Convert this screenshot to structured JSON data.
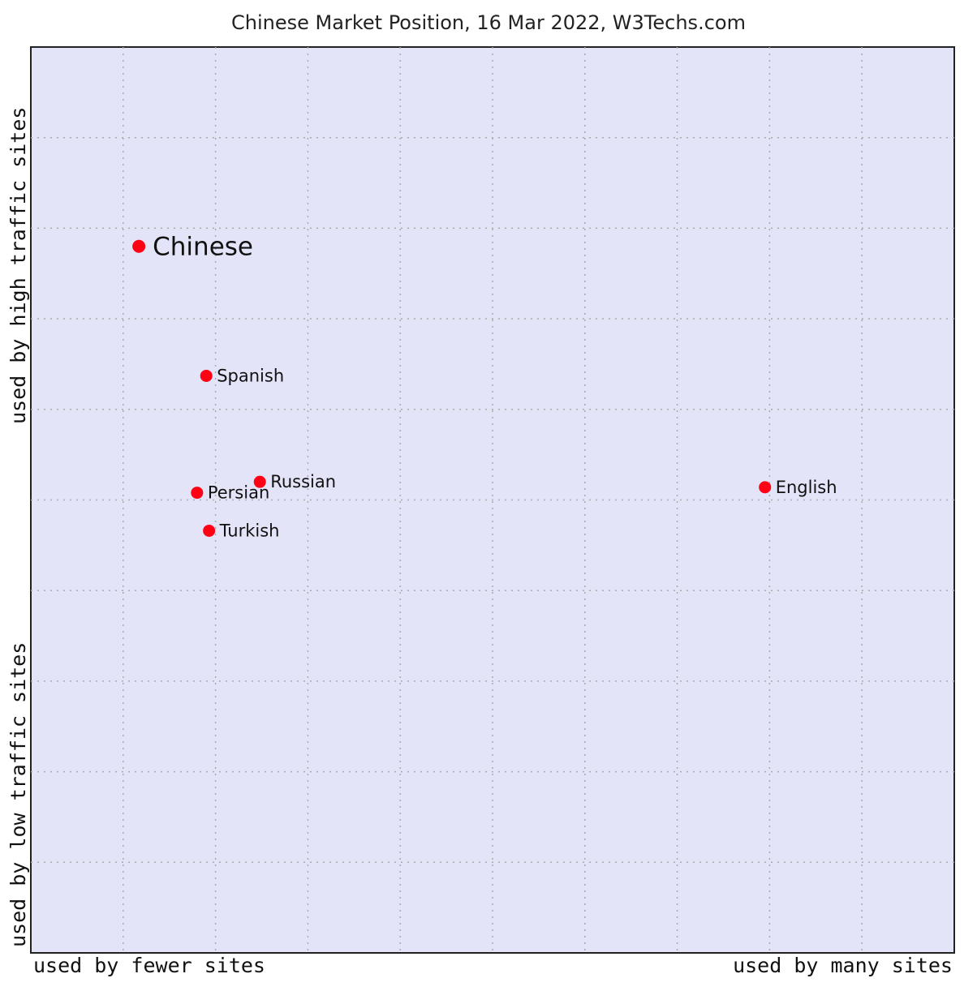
{
  "chart_data": {
    "type": "scatter",
    "title": "Chinese Market Position, 16 Mar 2022, W3Techs.com",
    "x_axis": {
      "low_label": "used by fewer sites",
      "high_label": "used by many sites"
    },
    "y_axis": {
      "low_label": "used by low traffic sites",
      "high_label": "used by high traffic sites"
    },
    "xlim": [
      0,
      10
    ],
    "ylim": [
      0,
      10
    ],
    "grid": true,
    "colors": {
      "plot_background": "#e4e4f8",
      "marker": "#ff0015",
      "grid": "#aaaaaa"
    },
    "points": [
      {
        "label": "Chinese",
        "x": 1.17,
        "y": 7.8,
        "highlight": true
      },
      {
        "label": "Spanish",
        "x": 1.9,
        "y": 6.37,
        "highlight": false
      },
      {
        "label": "Russian",
        "x": 2.48,
        "y": 5.2,
        "highlight": false
      },
      {
        "label": "Persian",
        "x": 1.8,
        "y": 5.08,
        "highlight": false
      },
      {
        "label": "Turkish",
        "x": 1.93,
        "y": 4.66,
        "highlight": false
      },
      {
        "label": "English",
        "x": 7.95,
        "y": 5.14,
        "highlight": false
      }
    ]
  }
}
